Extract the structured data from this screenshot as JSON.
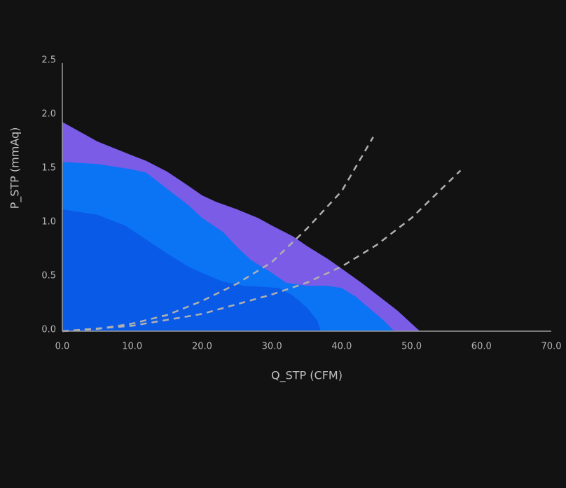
{
  "chart_data": {
    "type": "area",
    "x_label": "Q_STP (CFM)",
    "y_label": "P_STP (mmAq)",
    "xlim": [
      0,
      70
    ],
    "ylim": [
      0,
      2.5
    ],
    "xticks": [
      {
        "value": 0,
        "label": "0.0"
      },
      {
        "value": 10,
        "label": "10.0"
      },
      {
        "value": 20,
        "label": "20.0"
      },
      {
        "value": 30,
        "label": "30.0"
      },
      {
        "value": 40,
        "label": "40.0"
      },
      {
        "value": 50,
        "label": "50.0"
      },
      {
        "value": 60,
        "label": "60.0"
      },
      {
        "value": 70,
        "label": "70.0"
      }
    ],
    "yticks": [
      {
        "value": 0,
        "label": "0.0"
      },
      {
        "value": 0.5,
        "label": "0.5"
      },
      {
        "value": 1,
        "label": "1.0"
      },
      {
        "value": 1.5,
        "label": "1.5"
      },
      {
        "value": 2,
        "label": "2.0"
      },
      {
        "value": 2.5,
        "label": "2.5"
      }
    ],
    "series": [
      {
        "type": "area",
        "color": "#7a5ce6",
        "x": [
          0,
          5,
          10,
          12,
          15,
          18,
          20,
          22,
          25,
          28,
          30,
          33,
          35,
          38,
          40,
          43,
          45,
          48,
          50,
          51.2
        ],
        "values": [
          1.94,
          1.76,
          1.63,
          1.58,
          1.48,
          1.35,
          1.26,
          1.2,
          1.13,
          1.05,
          0.98,
          0.88,
          0.79,
          0.67,
          0.58,
          0.44,
          0.34,
          0.19,
          0.07,
          0
        ]
      },
      {
        "type": "area",
        "color": "#0a74f5",
        "x": [
          0,
          5,
          10,
          12,
          15,
          18,
          20,
          23,
          25,
          27,
          30,
          32,
          35,
          38,
          40,
          42,
          44,
          46,
          47.5
        ],
        "values": [
          1.57,
          1.55,
          1.5,
          1.47,
          1.32,
          1.17,
          1.05,
          0.92,
          0.78,
          0.66,
          0.54,
          0.45,
          0.42,
          0.42,
          0.4,
          0.32,
          0.21,
          0.1,
          0
        ]
      },
      {
        "type": "area",
        "color": "#0a5ae8",
        "x": [
          0,
          5,
          9,
          12,
          15,
          18,
          20,
          23,
          26,
          29,
          31,
          33,
          35,
          36.5,
          37
        ],
        "values": [
          1.13,
          1.08,
          0.98,
          0.85,
          0.72,
          0.6,
          0.54,
          0.46,
          0.42,
          0.41,
          0.4,
          0.33,
          0.22,
          0.1,
          0
        ]
      },
      {
        "type": "line",
        "color": "#b0b0b0",
        "dash": true,
        "x": [
          0,
          5,
          10,
          15,
          20,
          25,
          30,
          35,
          40,
          44.5
        ],
        "values": [
          0,
          0.02,
          0.07,
          0.15,
          0.28,
          0.44,
          0.64,
          0.95,
          1.3,
          1.8
        ]
      },
      {
        "type": "line",
        "color": "#b0b0b0",
        "dash": true,
        "x": [
          0,
          10,
          20,
          30,
          35,
          40,
          45,
          50,
          57
        ],
        "values": [
          0,
          0.05,
          0.16,
          0.34,
          0.45,
          0.6,
          0.8,
          1.05,
          1.49
        ]
      }
    ]
  }
}
